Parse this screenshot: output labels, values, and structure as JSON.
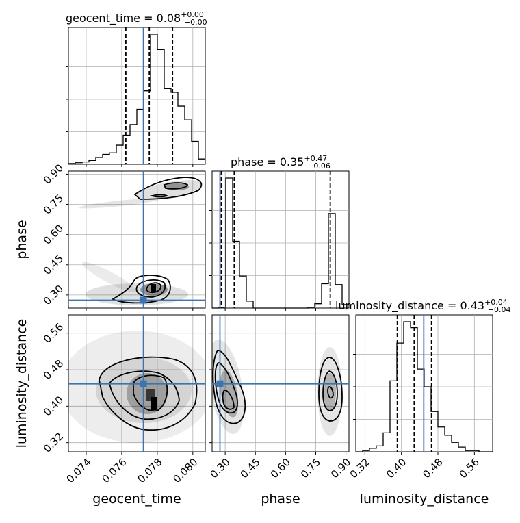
{
  "chart_data": {
    "type": "corner",
    "truth_color": "#3b75af",
    "quantile_color": "#000000",
    "parameters": [
      {
        "name": "geocent_time",
        "title_prefix": "geocent_time = ",
        "median": "0.08",
        "err_plus": "+0.00",
        "err_minus": "−0.00",
        "range": [
          0.073,
          0.0807
        ],
        "ticks": [
          0.074,
          0.076,
          0.078,
          0.08
        ],
        "tick_labels": [
          "0.074",
          "0.076",
          "0.078",
          "0.080"
        ],
        "quantiles": [
          0.07623,
          0.07755,
          0.07886
        ],
        "truth": 0.07722,
        "hist_edges_start": 0.073,
        "hist_bin_width": 0.000385,
        "hist_counts": [
          1,
          2,
          3,
          5,
          9,
          13,
          15,
          25,
          38,
          52,
          72,
          96,
          170,
          150,
          99,
          94,
          76,
          58,
          30,
          7
        ]
      },
      {
        "name": "phase",
        "title_prefix": "phase = ",
        "median": "0.35",
        "err_plus": "+0.47",
        "err_minus": "−0.06",
        "range": [
          0.235,
          0.915
        ],
        "ticks": [
          0.3,
          0.45,
          0.6,
          0.75,
          0.9
        ],
        "tick_labels": [
          "0.30",
          "0.45",
          "0.60",
          "0.75",
          "0.90"
        ],
        "quantiles": [
          0.281,
          0.345,
          0.822
        ],
        "truth": 0.274,
        "hist_edges_start": 0.235,
        "hist_bin_width": 0.034,
        "hist_counts": [
          0,
          1,
          150,
          77,
          37,
          8,
          0,
          0,
          0,
          0,
          0,
          0,
          0,
          0,
          1,
          5,
          28,
          109,
          27,
          4
        ]
      },
      {
        "name": "luminosity_distance",
        "title_prefix": "luminosity_distance = ",
        "median": "0.43",
        "err_plus": "+0.04",
        "err_minus": "−0.04",
        "range": [
          0.3,
          0.6
        ],
        "ticks": [
          0.32,
          0.4,
          0.48,
          0.56
        ],
        "tick_labels": [
          "0.32",
          "0.40",
          "0.48",
          "0.56"
        ],
        "quantiles": [
          0.391,
          0.428,
          0.466
        ],
        "truth": 0.449,
        "hist_edges_start": 0.3,
        "hist_bin_width": 0.015,
        "hist_counts": [
          0,
          1,
          3,
          5,
          16,
          60,
          92,
          110,
          105,
          70,
          55,
          34,
          21,
          14,
          8,
          4,
          1,
          1,
          0,
          0
        ]
      }
    ],
    "axis_labels": {
      "x": [
        "geocent_time",
        "phase",
        "luminosity_distance"
      ],
      "y": [
        "phase",
        "luminosity_distance"
      ]
    },
    "grid": true
  }
}
